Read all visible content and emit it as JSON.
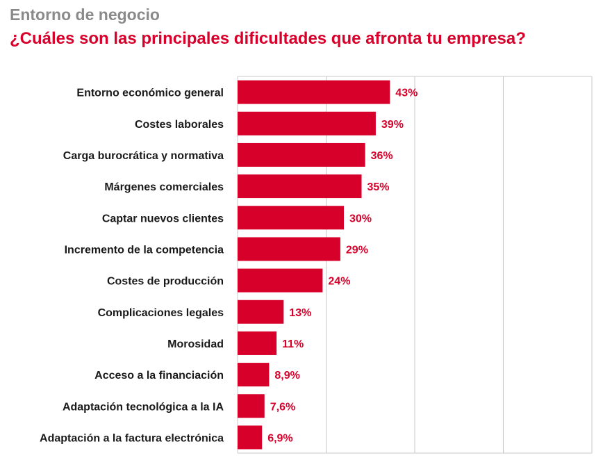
{
  "header": {
    "kicker": "Entorno de negocio",
    "title": "¿Cuáles son las principales dificultades que afronta tu empresa?"
  },
  "colors": {
    "bar": "#d6002a",
    "kicker": "#8a8a8a",
    "grid": "#c8c8c8"
  },
  "chart_data": {
    "type": "bar",
    "orientation": "horizontal",
    "title": "¿Cuáles son las principales dificultades que afronta tu empresa?",
    "xlim": [
      0,
      100
    ],
    "grid": true,
    "categories": [
      "Entorno económico general",
      "Costes laborales",
      "Carga burocrática y normativa",
      "Márgenes comerciales",
      "Captar nuevos clientes",
      "Incremento de la competencia",
      "Costes de producción",
      "Complicaciones legales",
      "Morosidad",
      "Acceso a la financiación",
      "Adaptación tecnológica a la IA",
      "Adaptación a la factura electrónica"
    ],
    "values": [
      43,
      39,
      36,
      35,
      30,
      29,
      24,
      13,
      11,
      8.9,
      7.6,
      6.9
    ],
    "value_labels": [
      "43%",
      "39%",
      "36%",
      "35%",
      "30%",
      "29%",
      "24%",
      "13%",
      "11%",
      "8,9%",
      "7,6%",
      "6,9%"
    ]
  }
}
